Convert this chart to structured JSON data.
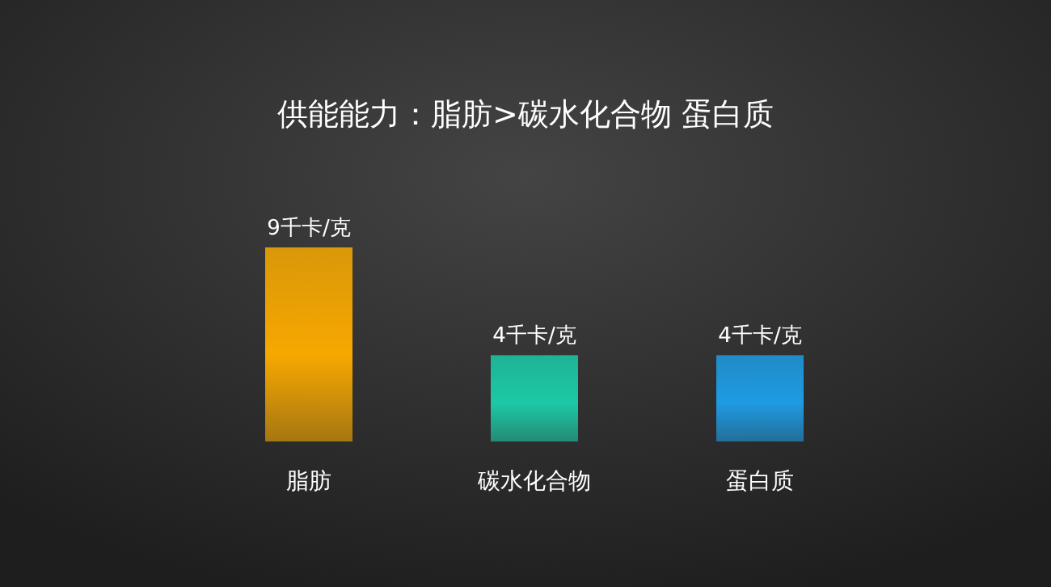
{
  "chart_data": {
    "type": "bar",
    "title": "供能能力：脂肪>碳水化合物 蛋白质",
    "categories": [
      "脂肪",
      "碳水化合物",
      "蛋白质"
    ],
    "values": [
      9,
      4,
      4
    ],
    "colors": [
      "#f7a800",
      "#1cc9a6",
      "#1e9be2"
    ],
    "value_labels": [
      "9千卡/克",
      "4千卡/克",
      "4千卡/克"
    ]
  }
}
